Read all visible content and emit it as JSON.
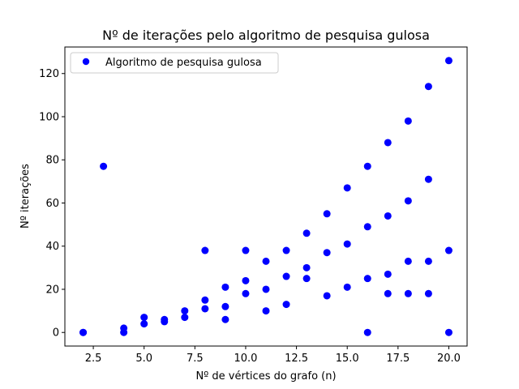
{
  "chart_data": {
    "type": "scatter",
    "title": "Nº de iterações pelo algoritmo de pesquisa gulosa",
    "xlabel": "Nº de vértices do grafo (n)",
    "ylabel": "Nº iterações",
    "xlim": [
      1.1,
      20.9
    ],
    "ylim": [
      -6.3,
      132.3
    ],
    "xticks": [
      2.5,
      5.0,
      7.5,
      10.0,
      12.5,
      15.0,
      17.5,
      20.0
    ],
    "xtick_labels": [
      "2.5",
      "5.0",
      "7.5",
      "10.0",
      "12.5",
      "15.0",
      "17.5",
      "20.0"
    ],
    "yticks": [
      0,
      20,
      40,
      60,
      80,
      100,
      120
    ],
    "ytick_labels": [
      "0",
      "20",
      "40",
      "60",
      "80",
      "100",
      "120"
    ],
    "grid": false,
    "legend": "upper-left",
    "series": [
      {
        "name": "Algoritmo de pesquisa gulosa",
        "color": "#0000ff",
        "points": [
          [
            2,
            0
          ],
          [
            2,
            0
          ],
          [
            3,
            77
          ],
          [
            4,
            2
          ],
          [
            4,
            0
          ],
          [
            5,
            7
          ],
          [
            5,
            4
          ],
          [
            6,
            6
          ],
          [
            6,
            5
          ],
          [
            7,
            10
          ],
          [
            7,
            7
          ],
          [
            8,
            38
          ],
          [
            8,
            15
          ],
          [
            8,
            11
          ],
          [
            9,
            21
          ],
          [
            9,
            12
          ],
          [
            9,
            6
          ],
          [
            10,
            38
          ],
          [
            10,
            24
          ],
          [
            10,
            18
          ],
          [
            11,
            33
          ],
          [
            11,
            20
          ],
          [
            11,
            10
          ],
          [
            12,
            38
          ],
          [
            12,
            26
          ],
          [
            12,
            13
          ],
          [
            13,
            46
          ],
          [
            13,
            30
          ],
          [
            13,
            25
          ],
          [
            14,
            55
          ],
          [
            14,
            37
          ],
          [
            14,
            17
          ],
          [
            15,
            67
          ],
          [
            15,
            41
          ],
          [
            15,
            21
          ],
          [
            16,
            77
          ],
          [
            16,
            49
          ],
          [
            16,
            25
          ],
          [
            16,
            0
          ],
          [
            17,
            88
          ],
          [
            17,
            54
          ],
          [
            17,
            27
          ],
          [
            17,
            18
          ],
          [
            18,
            98
          ],
          [
            18,
            61
          ],
          [
            18,
            33
          ],
          [
            18,
            18
          ],
          [
            19,
            114
          ],
          [
            19,
            71
          ],
          [
            19,
            33
          ],
          [
            19,
            18
          ],
          [
            20,
            126
          ],
          [
            20,
            38
          ],
          [
            20,
            0
          ]
        ]
      }
    ]
  }
}
